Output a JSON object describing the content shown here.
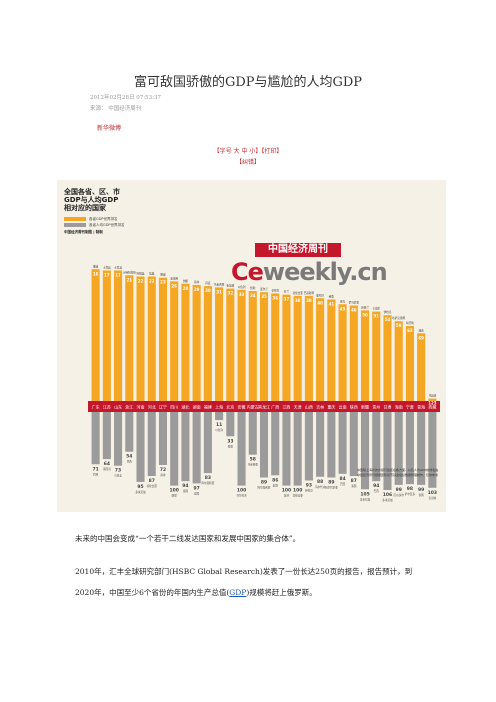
{
  "article": {
    "title": "富可敌国骄傲的GDP与尴尬的人均GDP",
    "date": "2012年02月28日 07:53:37",
    "source": "来源： 中国经济周刊",
    "author": "新华微博",
    "font_tools": "【字号 大 中 小】【打印】",
    "print_label": "【纠错】"
  },
  "infographic": {
    "title_lines": [
      "全国各省、区、市",
      "GDP与人均GDP",
      "相对应的国家"
    ],
    "legend": [
      {
        "label": "各省GDP世界排名",
        "color": "#f5a623"
      },
      {
        "label": "各省人均GDP世界排名",
        "color": "#9b9b9b"
      }
    ],
    "source_note": "中国经济周刊制图 | 制制",
    "magazine_banner": "中国经济周刊",
    "magazine_logo_prefix": "Ce",
    "magazine_logo_suffix": "weekly.cn",
    "footnote": "中国除上海外的省级行政区在各方面...以及人均GDP的排名由中国经济周刊根据国际货币基金组织数据整理制作，仅供参考"
  },
  "chart_data": {
    "type": "bar",
    "categories": [
      "广东",
      "江苏",
      "山东",
      "浙江",
      "河南",
      "河北",
      "辽宁",
      "四川",
      "湖北",
      "湖南",
      "福建",
      "上海",
      "北京",
      "安徽",
      "内蒙古",
      "黑龙江",
      "广西",
      "江西",
      "天津",
      "山西",
      "吉林",
      "重庆",
      "云南",
      "陕西",
      "新疆",
      "贵州",
      "甘肃",
      "海南",
      "宁夏",
      "青海",
      "西藏"
    ],
    "series": [
      {
        "name": "各省GDP世界排名",
        "values": [
          16,
          17,
          17,
          21,
          22,
          22,
          23,
          26,
          28,
          29,
          30,
          31,
          32,
          33,
          34,
          35,
          36,
          37,
          38,
          38,
          40,
          41,
          45,
          46,
          50,
          51,
          54,
          59,
          63,
          69,
          123
        ]
      },
      {
        "name": "各省人均GDP世界排名",
        "values": [
          71,
          64,
          73,
          54,
          95,
          87,
          72,
          100,
          94,
          97,
          83,
          11,
          33,
          100,
          58,
          89,
          86,
          100,
          100,
          93,
          88,
          89,
          84,
          87,
          105,
          94,
          106,
          99,
          98,
          99,
          103
        ]
      }
    ],
    "bar_labels_top": [
      "挪威",
      "土耳其",
      "土耳其",
      "沙特阿拉伯",
      "阿根廷",
      "瑞典",
      "挪威",
      "奥地利",
      "伊朗",
      "南非",
      "丹麦",
      "马来西亚",
      "新加坡",
      "以色列",
      "智利",
      "爱尔兰",
      "菲律宾",
      "芬兰",
      "哥伦比亚",
      "巴基斯坦",
      "葡萄牙",
      "秘鲁",
      "捷克",
      "罗马尼亚",
      "新西兰",
      "卡塔尔",
      "伊拉克",
      "哈萨克斯坦",
      "匈牙利",
      "越南",
      "马其顿"
    ],
    "bar_labels_bottom": [
      "巴西",
      "墨西哥",
      "乌拉圭",
      "巴西",
      "多米尼加",
      "哥伦比亚",
      "南非",
      "刚果",
      "泰国",
      "泰国",
      "阿尔及利亚",
      "以色列",
      "希腊",
      "马尔代夫",
      "马来西亚",
      "阿尔及利亚",
      "泰国",
      "斐济",
      "哥伦比亚",
      "伊拉克",
      "马尔代夫",
      "阿尔巴尼亚",
      "巴西",
      "泰国",
      "多米尼加",
      "巴西",
      "多米尼加",
      "厄瓜多尔",
      "萨尔瓦多",
      "泰国",
      "安哥拉"
    ]
  },
  "body": {
    "para1": "未来的中国会变成“一个若干二线发达国家和发展中国家的集合体”。",
    "para2": "2010年，汇丰全球研究部门(HSBC Global Research)发表了一份长达250页的报告，报告预计，到",
    "para3_before": "2020年，中国至少6个省份的年国内生产总值(",
    "para3_link": "GDP",
    "para3_after": ")规模将赶上俄罗斯。"
  }
}
